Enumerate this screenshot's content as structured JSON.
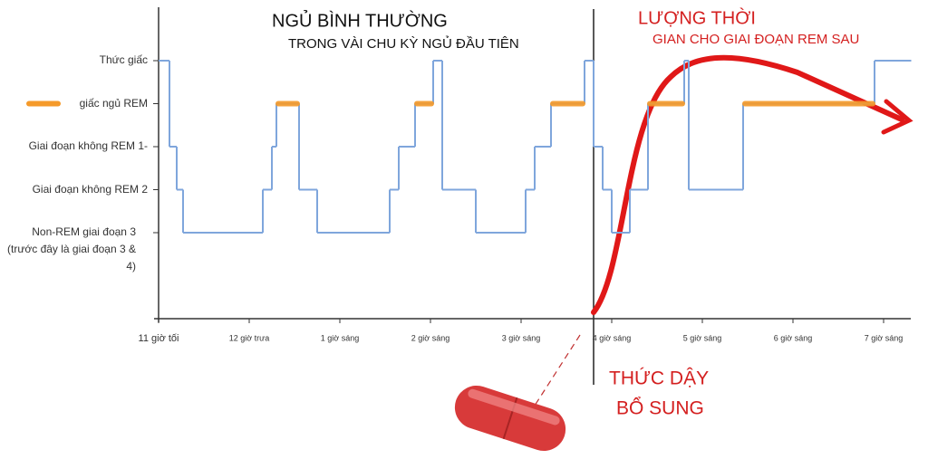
{
  "chart_data": {
    "type": "line",
    "title": "NGỦ BÌNH THƯỜNG",
    "subtitle": "TRONG VÀI CHU KỲ NGỦ ĐẦU TIÊN",
    "annotations": [
      "LƯỢNG THỜI",
      "GIAN CHO GIAI ĐOẠN REM SAU",
      "THỨC DẬY",
      "BỔ SUNG"
    ],
    "x": [
      0,
      0.12,
      0.2,
      0.27,
      1.15,
      1.25,
      1.3,
      1.55,
      1.75,
      2.55,
      2.65,
      2.83,
      3.03,
      3.13,
      3.5,
      4.05,
      4.15,
      4.33,
      4.7,
      4.8,
      4.9,
      5.0,
      5.2,
      5.4,
      5.8,
      5.85,
      6.45,
      7.9,
      8.3
    ],
    "series": [
      {
        "color": "#7fa6dc",
        "values": [
          5,
          3,
          2,
          1,
          2,
          3,
          4,
          2,
          1,
          2,
          3,
          4,
          5,
          2,
          1,
          2,
          3,
          4,
          5,
          3,
          2,
          1,
          2,
          4,
          5,
          2,
          4,
          5,
          5
        ]
      },
      {
        "color": "#f59a2a",
        "values": [
          null,
          null,
          null,
          null,
          null,
          null,
          4,
          null,
          null,
          null,
          null,
          4,
          null,
          null,
          null,
          null,
          null,
          4,
          null,
          null,
          null,
          null,
          null,
          4,
          null,
          null,
          4,
          null,
          null
        ]
      }
    ],
    "xlim": [
      0,
      8.3
    ],
    "xticks": [
      {
        "value": 0,
        "label": "11 giờ tối"
      },
      {
        "value": 1,
        "label": "12 giờ trưa"
      },
      {
        "value": 2,
        "label": "1 giờ sáng"
      },
      {
        "value": 3,
        "label": "2 giờ sáng"
      },
      {
        "value": 4,
        "label": "3 giờ sáng"
      },
      {
        "value": 5,
        "label": "4 giờ sáng"
      },
      {
        "value": 6,
        "label": "5 giờ sáng"
      },
      {
        "value": 7,
        "label": "6 giờ sáng"
      },
      {
        "value": 8,
        "label": "7 giờ sáng"
      }
    ],
    "ylim": [
      -1,
      6
    ],
    "yticks": [
      {
        "value": 5,
        "label": "Thức giấc"
      },
      {
        "value": 4,
        "label": "giấc ngủ REM"
      },
      {
        "value": 3,
        "label": "Giai đoạn không REM 1-"
      },
      {
        "value": 2,
        "label": "Giai đoạn không REM 2"
      },
      {
        "value": 1,
        "label": "Non-REM giai đoạn 3 (trước đây là giai đoạn 3 & 4)"
      }
    ]
  }
}
